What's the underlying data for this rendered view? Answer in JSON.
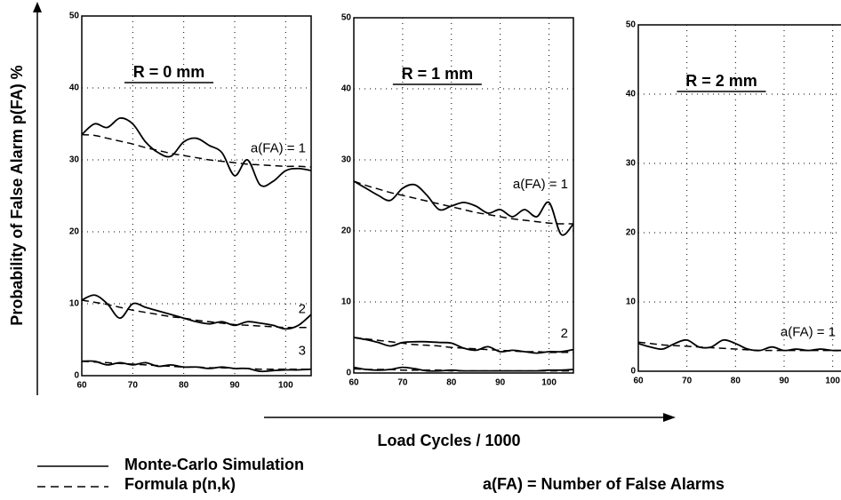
{
  "ylabel": "Probability of False Alarm p(FA) %",
  "xlabel": "Load Cycles / 1000",
  "legend": {
    "simulation": "Monte-Carlo Simulation",
    "formula": "Formula p(n,k)"
  },
  "note": "a(FA) = Number of False Alarms",
  "chart_data": [
    {
      "type": "line",
      "title": "R = 0 mm",
      "color": "#000000",
      "x": [
        60,
        62.5,
        65,
        67.5,
        70,
        72.5,
        75,
        77.5,
        80,
        82.5,
        85,
        87.5,
        90,
        92.5,
        95,
        97.5,
        100,
        102.5,
        105
      ],
      "xlim": [
        60,
        105
      ],
      "xticks": [
        60,
        70,
        80,
        90,
        100
      ],
      "ylim": [
        0,
        50
      ],
      "yticks": [
        0,
        10,
        20,
        30,
        40,
        50
      ],
      "grid": true,
      "series": [
        {
          "label": "a(FA) = 1",
          "simulation": [
            33.5,
            35,
            34.5,
            35.8,
            35,
            32.5,
            31,
            30.5,
            32.5,
            33,
            32,
            31,
            27.8,
            30,
            26.5,
            27,
            28.5,
            28.8,
            28.5
          ],
          "formula": [
            33.5,
            33.4,
            33,
            32.6,
            32.2,
            31.7,
            31.3,
            30.9,
            30.6,
            30.3,
            30,
            29.8,
            29.6,
            29.4,
            29.3,
            29.2,
            29.1,
            29.1,
            29
          ]
        },
        {
          "label": "2",
          "simulation": [
            10.5,
            11.2,
            10,
            8,
            10,
            9.5,
            9,
            8.5,
            8,
            7.5,
            7.2,
            7.5,
            7,
            7.5,
            7.3,
            7,
            6.5,
            7,
            8.5
          ],
          "formula": [
            10.5,
            10.2,
            9.9,
            9.5,
            9.1,
            8.8,
            8.5,
            8.2,
            8,
            7.7,
            7.5,
            7.3,
            7.1,
            7,
            6.9,
            6.8,
            6.7,
            6.7,
            6.7
          ]
        },
        {
          "label": "3",
          "simulation": [
            2,
            2,
            1.5,
            1.8,
            1.5,
            1.8,
            1.3,
            1.5,
            1.2,
            1.2,
            1,
            1.2,
            1,
            1,
            0.6,
            0.7,
            0.8,
            0.8,
            0.9
          ],
          "formula": [
            2,
            1.9,
            1.8,
            1.7,
            1.6,
            1.5,
            1.4,
            1.3,
            1.2,
            1.2,
            1.1,
            1.1,
            1,
            1,
            0.9,
            0.9,
            0.9,
            0.9,
            0.9
          ]
        }
      ]
    },
    {
      "type": "line",
      "title": "R = 1 mm",
      "color": "#000000",
      "x": [
        60,
        62.5,
        65,
        67.5,
        70,
        72.5,
        75,
        77.5,
        80,
        82.5,
        85,
        87.5,
        90,
        92.5,
        95,
        97.5,
        100,
        102.5,
        105
      ],
      "xlim": [
        60,
        105
      ],
      "xticks": [
        60,
        70,
        80,
        90,
        100
      ],
      "ylim": [
        0,
        50
      ],
      "yticks": [
        0,
        10,
        20,
        30,
        40,
        50
      ],
      "grid": true,
      "series": [
        {
          "label": "a(FA) = 1",
          "simulation": [
            27,
            26,
            25,
            24.3,
            26,
            26.5,
            25,
            23,
            23.5,
            24,
            23.5,
            22.5,
            23,
            22,
            23,
            22,
            24,
            19.5,
            21
          ],
          "formula": [
            27,
            26.4,
            25.9,
            25.4,
            25,
            24.6,
            24.2,
            23.8,
            23.4,
            23,
            22.6,
            22.3,
            22,
            21.7,
            21.5,
            21.3,
            21.1,
            21,
            21
          ]
        },
        {
          "label": "2",
          "simulation": [
            5,
            4.7,
            4.3,
            3.8,
            4.3,
            4.4,
            4.4,
            4.3,
            4.2,
            3.5,
            3.2,
            3.7,
            3,
            3.2,
            3,
            2.8,
            3,
            3,
            3.3
          ],
          "formula": [
            5,
            4.8,
            4.6,
            4.4,
            4.2,
            4,
            3.9,
            3.8,
            3.6,
            3.5,
            3.4,
            3.3,
            3.2,
            3.1,
            3,
            3,
            2.9,
            2.9,
            2.9
          ]
        },
        {
          "simulation": [
            0.8,
            0.5,
            0.4,
            0.5,
            0.8,
            0.6,
            0.3,
            0.3,
            0.4,
            0.3,
            0.3,
            0.3,
            0.3,
            0.3,
            0.3,
            0.3,
            0.4,
            0.4,
            0.5
          ],
          "formula": [
            0.6,
            0.5,
            0.5,
            0.5,
            0.4,
            0.4,
            0.4,
            0.4,
            0.3,
            0.3,
            0.3,
            0.3,
            0.3,
            0.3,
            0.3,
            0.3,
            0.3,
            0.3,
            0.3
          ]
        }
      ]
    },
    {
      "type": "line",
      "title": "R = 2 mm",
      "color": "#000000",
      "x": [
        60,
        62.5,
        65,
        67.5,
        70,
        72.5,
        75,
        77.5,
        80,
        82.5,
        85,
        87.5,
        90,
        92.5,
        95,
        97.5,
        100,
        102.5,
        105
      ],
      "xlim": [
        60,
        105
      ],
      "xticks": [
        60,
        70,
        80,
        90,
        100
      ],
      "ylim": [
        0,
        50
      ],
      "yticks": [
        0,
        10,
        20,
        30,
        40,
        50
      ],
      "grid": true,
      "series": [
        {
          "label": "a(FA) = 1",
          "simulation": [
            4,
            3.5,
            3.2,
            4,
            4.5,
            3.5,
            3.5,
            4.5,
            4,
            3.2,
            3,
            3.5,
            3,
            3.2,
            3,
            3.2,
            3,
            3,
            3
          ],
          "formula": [
            4.2,
            4,
            3.8,
            3.7,
            3.6,
            3.5,
            3.4,
            3.3,
            3.2,
            3.1,
            3,
            3,
            3,
            3,
            3,
            3,
            3,
            3,
            3
          ]
        }
      ]
    }
  ]
}
